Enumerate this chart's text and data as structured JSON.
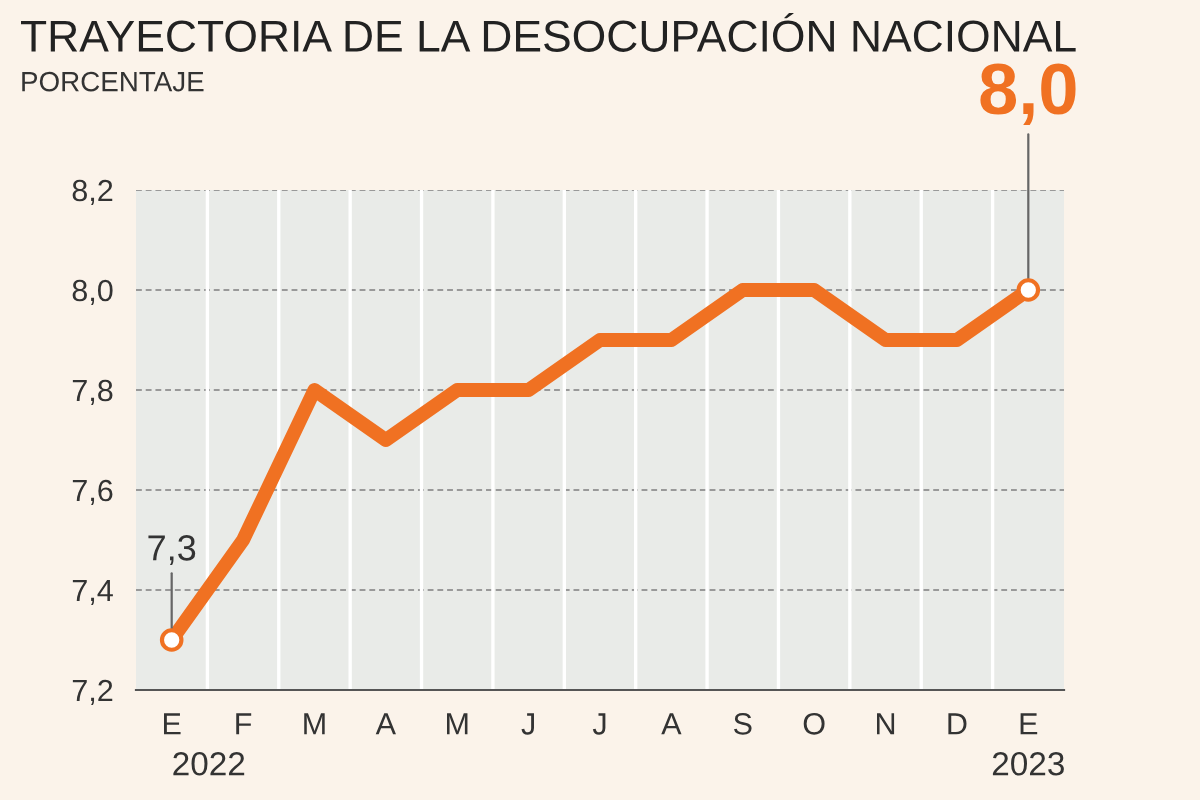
{
  "chart_data": {
    "type": "line",
    "title": "TRAYECTORIA DE LA DESOCUPACIÓN NACIONAL",
    "subtitle": "PORCENTAJE",
    "categories": [
      "E",
      "F",
      "M",
      "A",
      "M",
      "J",
      "J",
      "A",
      "S",
      "O",
      "N",
      "D",
      "E"
    ],
    "series": [
      {
        "color": "#f07122",
        "values": [
          7.3,
          7.5,
          7.8,
          7.7,
          7.8,
          7.8,
          7.9,
          7.9,
          8.0,
          8.0,
          7.9,
          7.9,
          8.0
        ],
        "value_labels": [
          "7,3",
          null,
          null,
          null,
          null,
          null,
          null,
          null,
          null,
          null,
          null,
          null,
          "8,0"
        ]
      }
    ],
    "ylim": [
      7.2,
      8.2
    ],
    "yticks": [
      {
        "value": 7.2,
        "label": "7,2"
      },
      {
        "value": 7.4,
        "label": "7,4"
      },
      {
        "value": 7.6,
        "label": "7,6"
      },
      {
        "value": 7.8,
        "label": "7,8"
      },
      {
        "value": 8.0,
        "label": "8,0"
      },
      {
        "value": 8.2,
        "label": "8,2"
      }
    ],
    "grid": true,
    "marker": "none",
    "line_style": "solid",
    "legend": false,
    "annotations": [
      "2022",
      "2023"
    ]
  }
}
